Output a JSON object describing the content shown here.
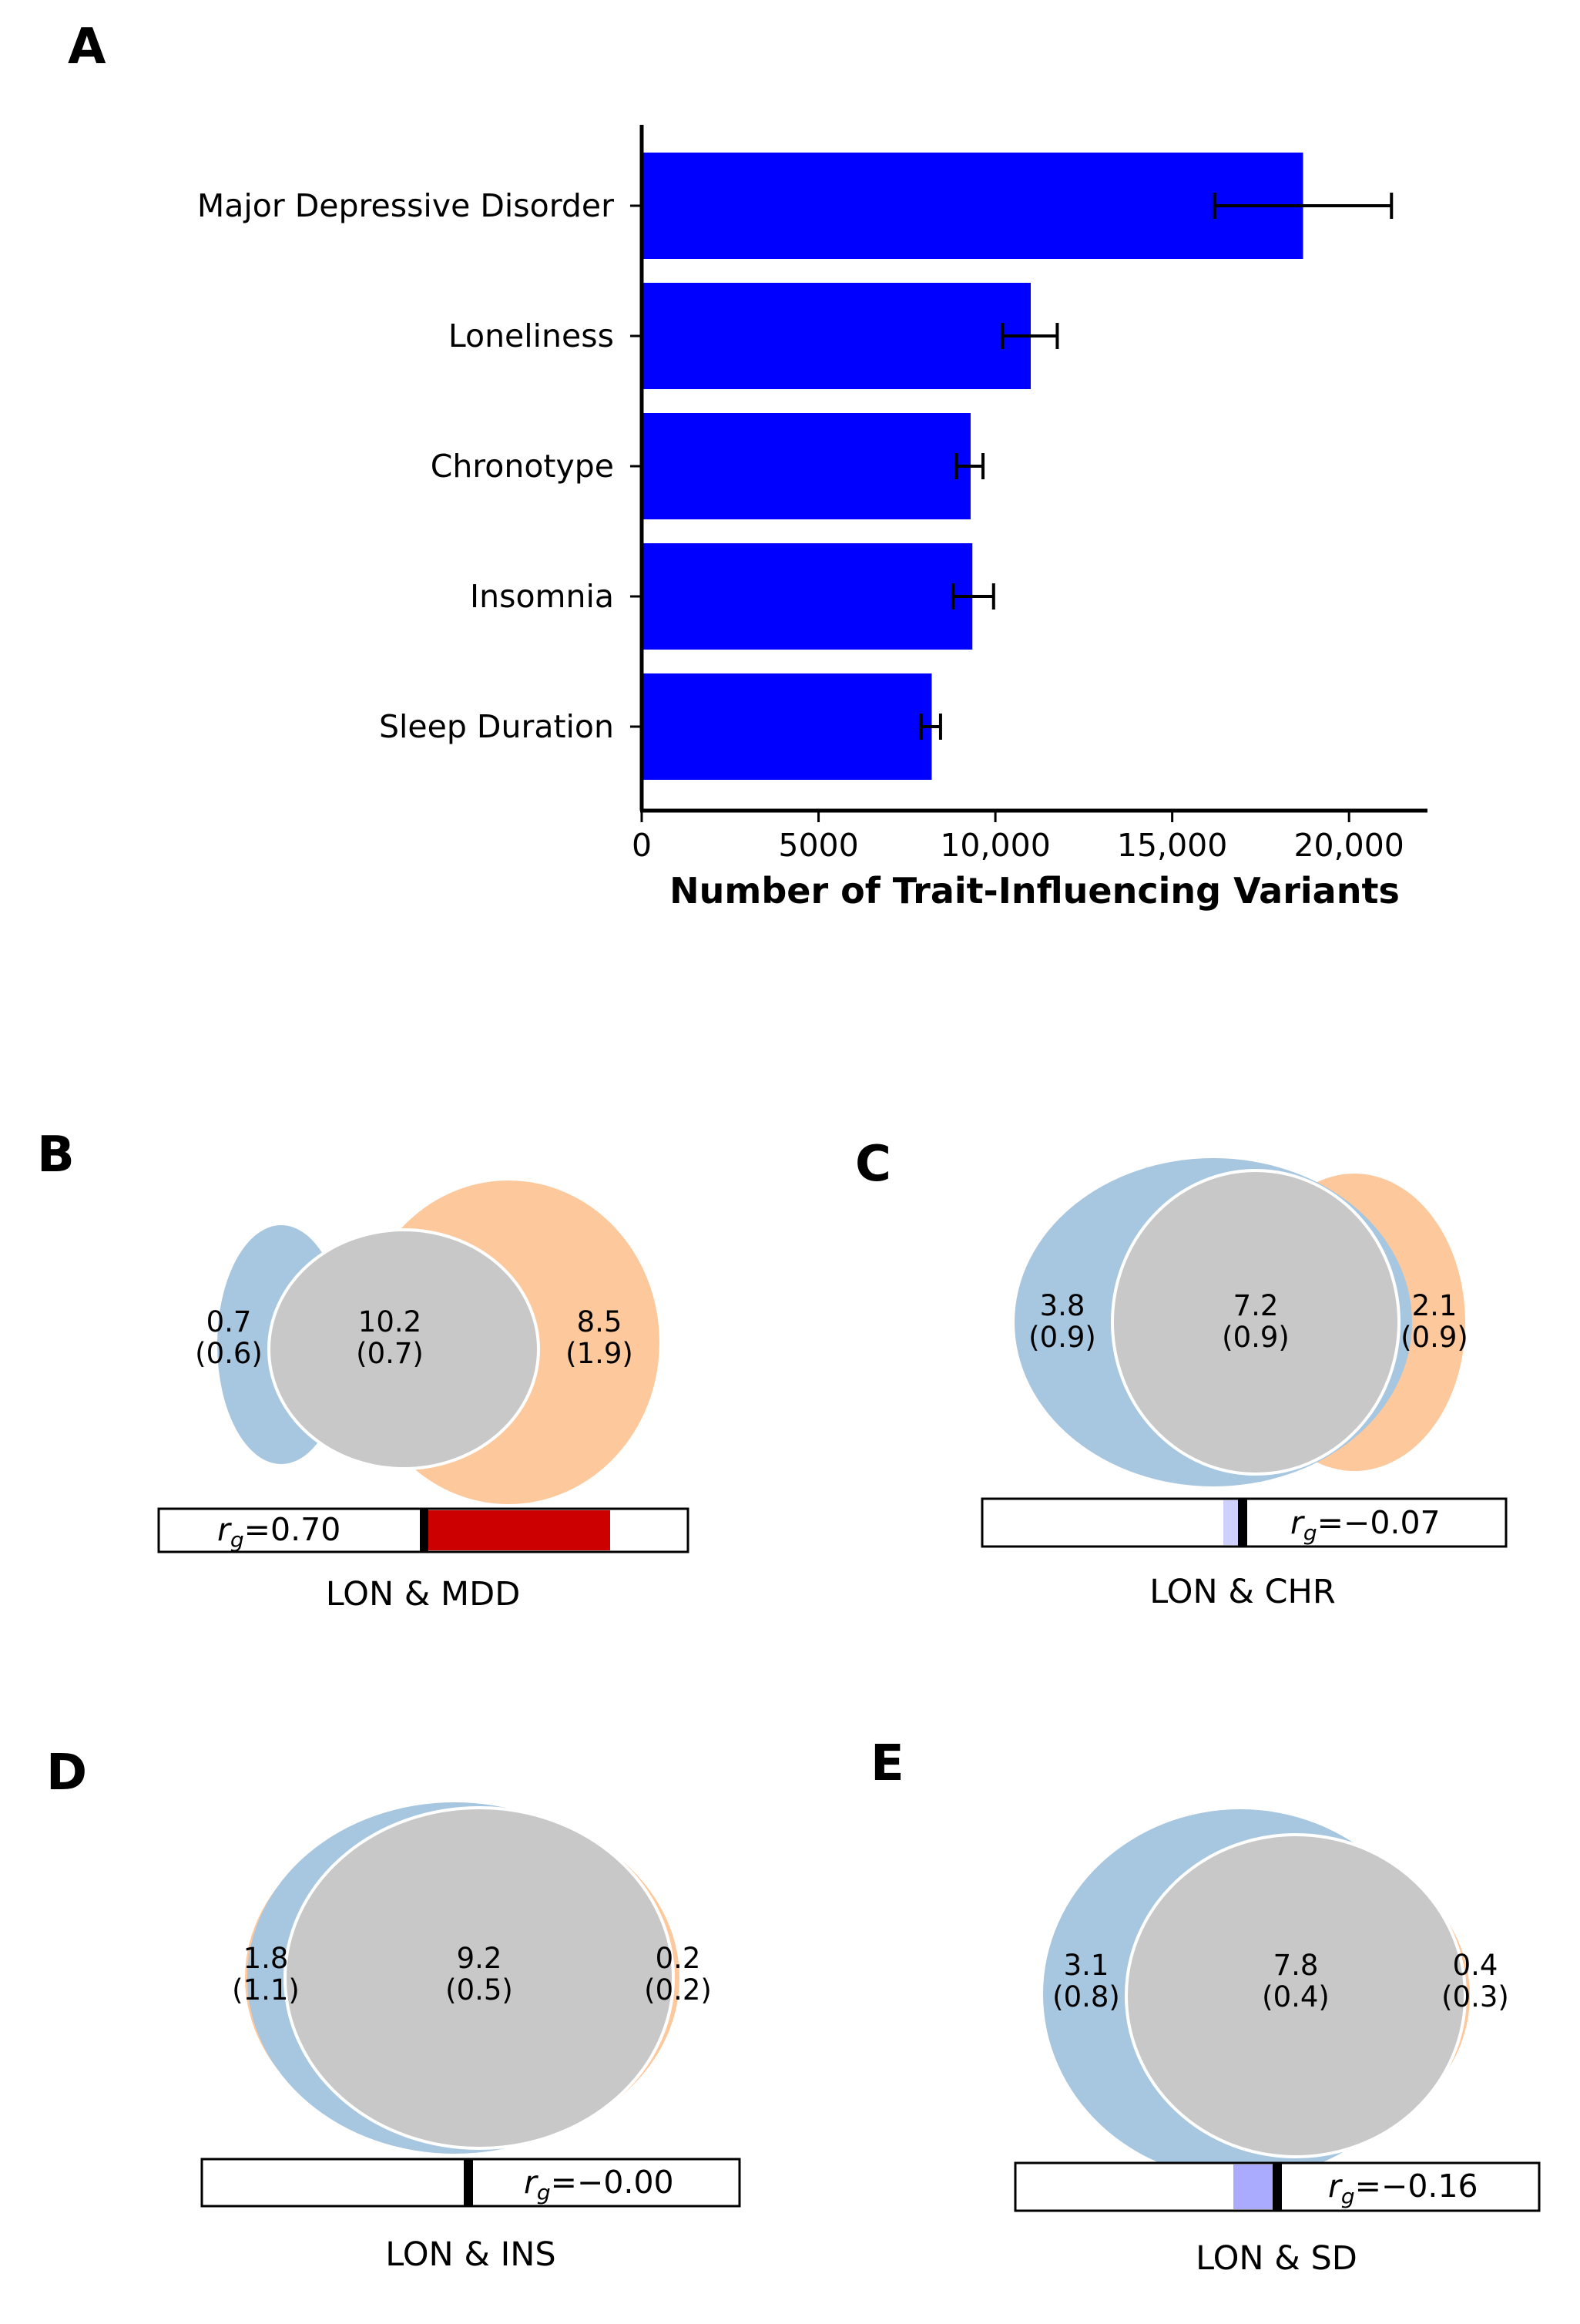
{
  "chart_data": [
    {
      "panel": "A",
      "type": "bar",
      "orientation": "horizontal",
      "categories": [
        "Major Depressive Disorder",
        "Loneliness",
        "Chronotype",
        "Insomnia",
        "Sleep Duration"
      ],
      "values": [
        18700,
        11000,
        9300,
        9350,
        8200
      ],
      "errors": [
        [
          16200,
          21200
        ],
        [
          10200,
          11750
        ],
        [
          8900,
          9650
        ],
        [
          8800,
          9950
        ],
        [
          7900,
          8450
        ]
      ],
      "color": "#0000ff",
      "xlabel": "Number of Trait-Influencing Variants",
      "xlim": [
        0,
        22000
      ],
      "xticks": [
        0,
        5000,
        10000,
        15000,
        20000
      ],
      "xtick_labels": [
        "0",
        "5000",
        "10,000",
        "15,000",
        "20,000"
      ]
    },
    {
      "panel": "B",
      "type": "venn",
      "pair": "LON & MDD",
      "left": {
        "value": "0.7",
        "sd": "(0.6)"
      },
      "shared": {
        "value": "10.2",
        "sd": "(0.7)"
      },
      "right": {
        "value": "8.5",
        "sd": "(1.9)"
      },
      "rg": 0.7,
      "rg_text": "=0.70"
    },
    {
      "panel": "C",
      "type": "venn",
      "pair": "LON & CHR",
      "left": {
        "value": "3.8",
        "sd": "(0.9)"
      },
      "shared": {
        "value": "7.2",
        "sd": "(0.9)"
      },
      "right": {
        "value": "2.1",
        "sd": "(0.9)"
      },
      "rg": -0.07,
      "rg_text": "=−0.07"
    },
    {
      "panel": "D",
      "type": "venn",
      "pair": "LON & INS",
      "left": {
        "value": "1.8",
        "sd": "(1.1)"
      },
      "shared": {
        "value": "9.2",
        "sd": "(0.5)"
      },
      "right": {
        "value": "0.2",
        "sd": "(0.2)"
      },
      "rg": -0.0,
      "rg_text": "=−0.00"
    },
    {
      "panel": "E",
      "type": "venn",
      "pair": "LON & SD",
      "left": {
        "value": "3.1",
        "sd": "(0.8)"
      },
      "shared": {
        "value": "7.8",
        "sd": "(0.4)"
      },
      "right": {
        "value": "0.4",
        "sd": "(0.3)"
      },
      "rg": -0.16,
      "rg_text": "=−0.16"
    }
  ],
  "colors": {
    "bar": "#0000ff",
    "lon_circle": "#a7c6df",
    "trait_circle": "#fdc89c",
    "shared": "#c8c8c8",
    "rg_positive": "#cc0000",
    "rg_negative": "#aaaaff"
  },
  "rg_symbol": "r",
  "rg_subscript": "g"
}
